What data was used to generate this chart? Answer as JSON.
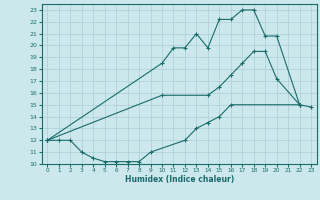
{
  "xlabel": "Humidex (Indice chaleur)",
  "bg_color": "#cce8ec",
  "line_color": "#1a6b6b",
  "grid_color": "#aacdd4",
  "curve_top_x": [
    0,
    10,
    11,
    12,
    13,
    14,
    15,
    16,
    17,
    18,
    19,
    20,
    22
  ],
  "curve_top_y": [
    12,
    18.5,
    19.8,
    19.8,
    21.0,
    19.8,
    22.2,
    22.2,
    23.0,
    23.0,
    20.8,
    20.8,
    15.0
  ],
  "curve_mid_x": [
    0,
    10,
    14,
    15,
    16,
    17,
    18,
    19,
    20,
    22
  ],
  "curve_mid_y": [
    12,
    15.8,
    15.8,
    16.5,
    17.5,
    18.5,
    19.5,
    19.5,
    17.2,
    15.0
  ],
  "curve_bot_x": [
    0,
    1,
    2,
    3,
    4,
    5,
    6,
    7,
    8,
    9,
    12,
    13,
    14,
    15,
    16,
    22,
    23
  ],
  "curve_bot_y": [
    12,
    12.0,
    12.0,
    11.0,
    10.5,
    10.2,
    10.2,
    10.2,
    10.2,
    11.0,
    12.0,
    13.0,
    13.5,
    14.0,
    15.0,
    15.0,
    14.8
  ],
  "xlim": [
    -0.5,
    23.5
  ],
  "ylim": [
    10,
    23.5
  ],
  "yticks": [
    10,
    11,
    12,
    13,
    14,
    15,
    16,
    17,
    18,
    19,
    20,
    21,
    22,
    23
  ],
  "xticks": [
    0,
    1,
    2,
    3,
    4,
    5,
    6,
    7,
    8,
    9,
    10,
    11,
    12,
    13,
    14,
    15,
    16,
    17,
    18,
    19,
    20,
    21,
    22,
    23
  ]
}
